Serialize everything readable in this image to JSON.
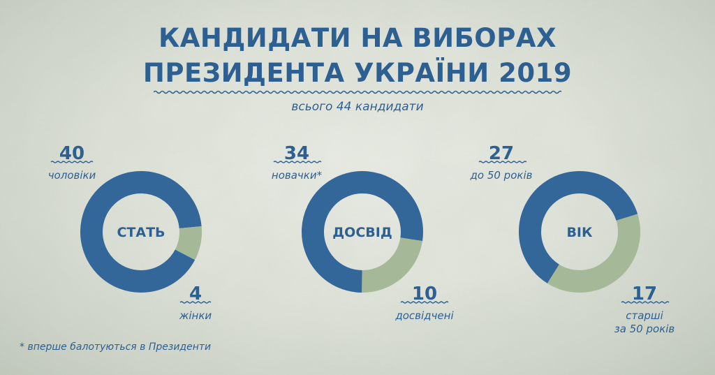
{
  "title": {
    "line1": "КАНДИДАТИ НА ВИБОРАХ",
    "line2": "ПРЕЗИДЕНТА УКРАЇНИ 2019"
  },
  "subtitle": "всього 44 кандидати",
  "footnote": "* вперше балотуються в Президенти",
  "colors": {
    "primary": "#336699",
    "secondary": "#a5b898",
    "text": "#2d5f91"
  },
  "chart_data": [
    {
      "type": "pie",
      "center_label": "СТАТЬ",
      "slices": [
        {
          "label": "чоловіки",
          "value": 40,
          "label_lines": [
            "чоловіки"
          ]
        },
        {
          "label": "жінки",
          "value": 4,
          "label_lines": [
            "жінки"
          ]
        }
      ]
    },
    {
      "type": "pie",
      "center_label": "ДОСВІД",
      "slices": [
        {
          "label": "новачки*",
          "value": 34,
          "label_lines": [
            "новачки*"
          ]
        },
        {
          "label": "досвідчені",
          "value": 10,
          "label_lines": [
            "досвідчені"
          ]
        }
      ]
    },
    {
      "type": "pie",
      "center_label": "ВІК",
      "slices": [
        {
          "label": "до 50 років",
          "value": 27,
          "label_lines": [
            "до 50 років"
          ]
        },
        {
          "label": "старші за 50 років",
          "value": 17,
          "label_lines": [
            "старші",
            "за 50 років"
          ]
        }
      ]
    }
  ]
}
